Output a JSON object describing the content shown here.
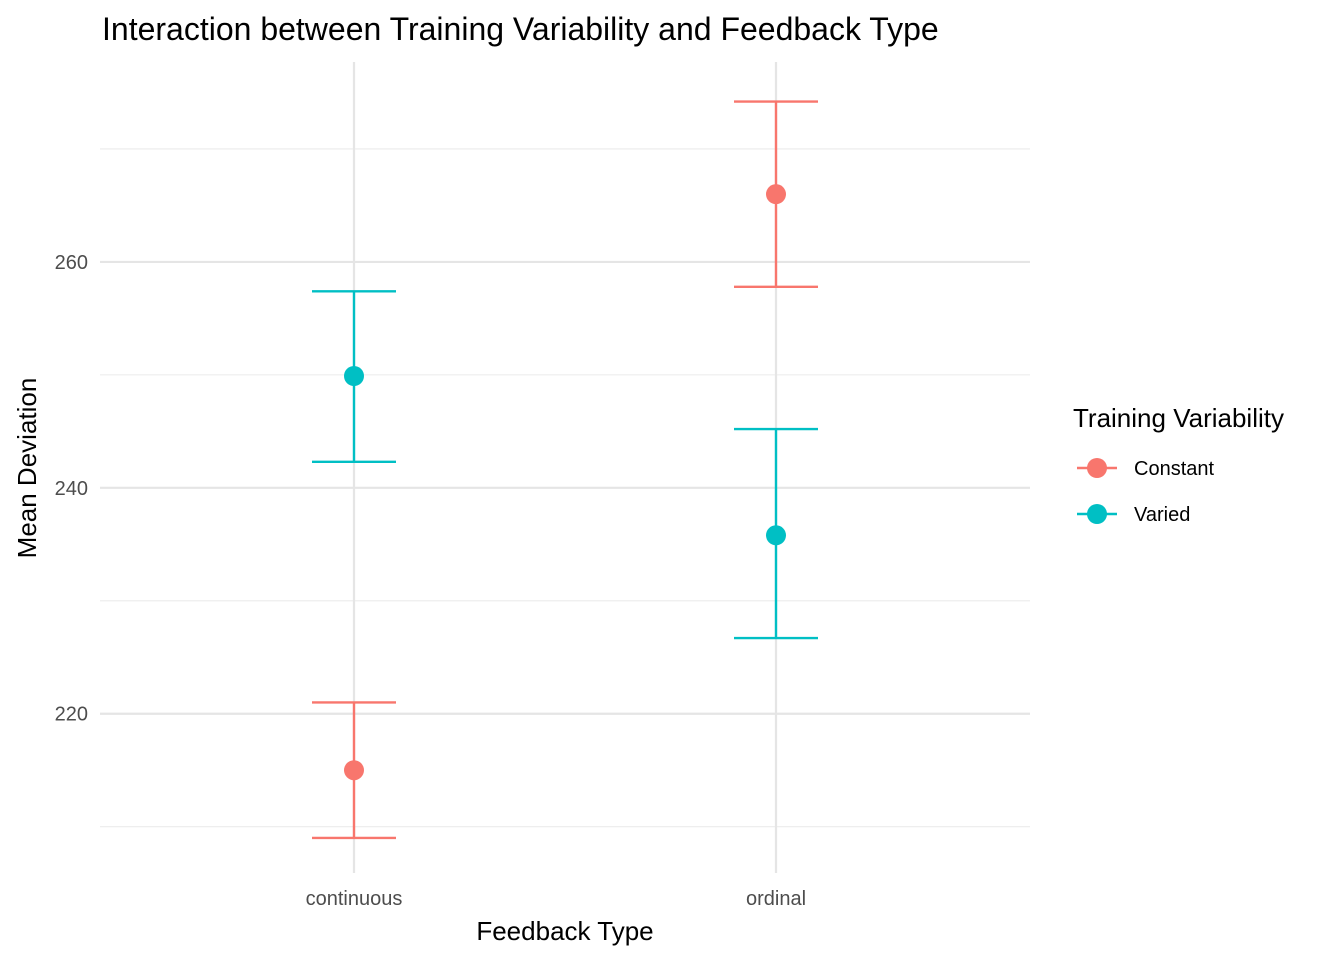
{
  "chart_data": {
    "type": "scatter",
    "title": "Interaction between Training Variability and Feedback Type",
    "xlabel": "Feedback Type",
    "ylabel": "Mean Deviation",
    "categories": [
      "continuous",
      "ordinal"
    ],
    "ylim": [
      205.9,
      277.7
    ],
    "yticks": [
      220,
      240,
      260
    ],
    "grid": true,
    "legend": {
      "title": "Training Variability",
      "position": "right"
    },
    "series": [
      {
        "name": "Constant",
        "color": "#F8766D",
        "values": [
          215,
          266
        ],
        "lower": [
          209,
          257.8
        ],
        "upper": [
          221,
          274.2
        ]
      },
      {
        "name": "Varied",
        "color": "#00BFC4",
        "values": [
          249.9,
          235.8
        ],
        "lower": [
          242.3,
          226.7
        ],
        "upper": [
          257.4,
          245.2
        ]
      }
    ]
  }
}
